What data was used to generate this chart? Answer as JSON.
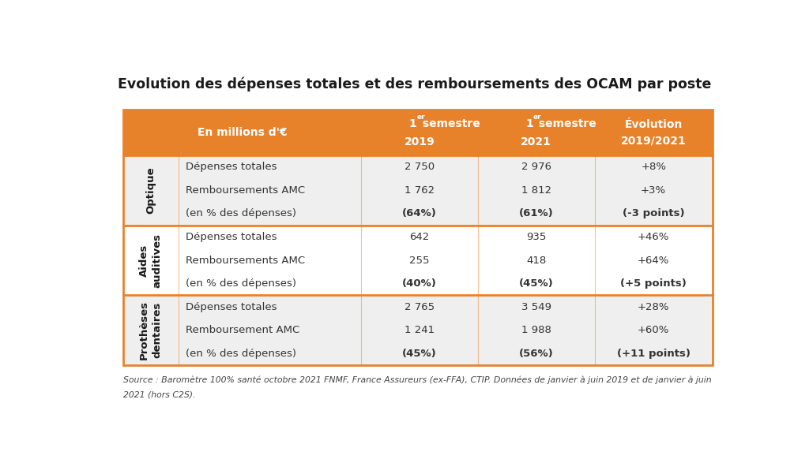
{
  "title": "Evolution des dépenses totales et des remboursements des OCAM par poste",
  "header_bg": "#E8822A",
  "header_text_color": "#FFFFFF",
  "category_bg": "#E0E0E0",
  "category_text_color": "#1a1a1a",
  "border_color": "#E8822A",
  "text_color": "#333333",
  "source_line1": "Source : Baromètre 100% santé octobre 2021 FNMF, France Assureurs (ex-FFA), CTIP. Données de janvier à juin 2019 et de janvier à juin",
  "source_line2": "2021 (hors C2S).",
  "rows": [
    {
      "category": "Optique",
      "lines": [
        [
          "Dépenses totales",
          "2 750",
          "2 976",
          "+8%"
        ],
        [
          "Remboursements AMC",
          "1 762",
          "1 812",
          "+3%"
        ],
        [
          "(en % des dépenses)",
          "(64%)",
          "(61%)",
          "(-3 points)"
        ]
      ],
      "bold_line": 2
    },
    {
      "category": "Aides\nauditives",
      "lines": [
        [
          "Dépenses totales",
          "642",
          "935",
          "+46%"
        ],
        [
          "Remboursements AMC",
          "255",
          "418",
          "+64%"
        ],
        [
          "(en % des dépenses)",
          "(40%)",
          "(45%)",
          "(+5 points)"
        ]
      ],
      "bold_line": 2
    },
    {
      "category": "Prothèses\ndentaires",
      "lines": [
        [
          "Dépenses totales",
          "2 765",
          "3 549",
          "+28%"
        ],
        [
          "Remboursement AMC",
          "1 241",
          "1 988",
          "+60%"
        ],
        [
          "(en % des dépenses)",
          "(45%)",
          "(56%)",
          "(+11 points)"
        ]
      ],
      "bold_line": 2
    }
  ],
  "figsize": [
    10.24,
    6.01
  ],
  "dpi": 100
}
